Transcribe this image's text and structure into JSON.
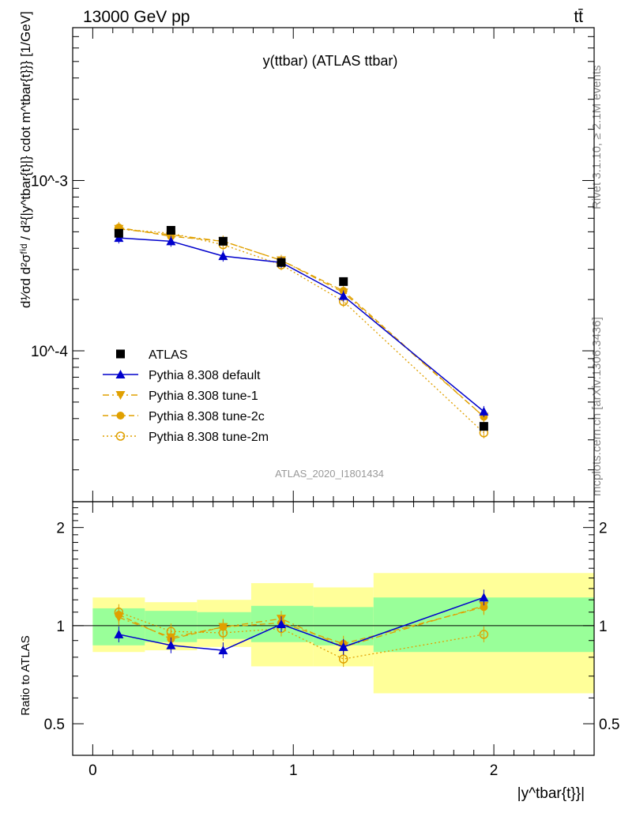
{
  "header": {
    "left": "13000 GeV pp",
    "right": "tt̄"
  },
  "side": {
    "rivet": "Rivet 3.1.10, ≥ 2.1M events",
    "mcplots": "mcplots.cern.ch [arXiv:1306.3436]"
  },
  "plot": {
    "title": "y(ttbar) (ATLAS ttbar)",
    "analysis": "ATLAS_2020_I1801434",
    "ylabel": "d¹⁄σd d²σᶠⁱᵈ / d²{|y^tbar{t}|} cdot m^tbar{t}}} [1/GeV]",
    "xlabel": "|y^tbar{t}}|",
    "ratio_ylabel": "Ratio to ATLAS"
  },
  "colors": {
    "atlas": "#000000",
    "default": "#0000cc",
    "tune": "#e0a000",
    "band_inner": "#99ff99",
    "band_outer": "#ffff99"
  },
  "chart_data": [
    {
      "type": "line",
      "title": "y(ttbar) (ATLAS ttbar)",
      "xlabel": "|y^tbar{t}}|",
      "ylabel": "d1/σ d²σfid / d²{|y^tbar{t}|} cdot m^tbar{t}}} [1/GeV]",
      "yscale": "log",
      "xlim": [
        -0.1,
        2.5
      ],
      "ylim": [
        1.3e-05,
        0.0079
      ],
      "y_tick_labels": [
        "10^-3",
        "10^-4"
      ],
      "x_edges": [
        0,
        0.26,
        0.52,
        0.79,
        1.1,
        1.4,
        2.5
      ],
      "x": [
        0.13,
        0.39,
        0.65,
        0.94,
        1.25,
        1.95
      ],
      "series": [
        {
          "name": "ATLAS",
          "values": [
            0.00049,
            0.00051,
            0.00044,
            0.00033,
            0.000255,
            3.6e-05
          ]
        },
        {
          "name": "Pythia 8.308 default",
          "values": [
            0.00046,
            0.00044,
            0.00036,
            0.00033,
            0.00021,
            4.4e-05
          ]
        },
        {
          "name": "Pythia 8.308 tune-1",
          "values": [
            0.00052,
            0.00048,
            0.00044,
            0.00034,
            0.00022,
            4.1e-05
          ]
        },
        {
          "name": "Pythia 8.308 tune-2c",
          "values": [
            0.00053,
            0.00047,
            0.00044,
            0.00034,
            0.000225,
            4.1e-05
          ]
        },
        {
          "name": "Pythia 8.308 tune-2m",
          "values": [
            0.00052,
            0.00049,
            0.00042,
            0.00032,
            0.000195,
            3.3e-05
          ]
        }
      ],
      "legend": "left-bottom",
      "annotation": "ATLAS_2020_I1801434"
    },
    {
      "type": "line",
      "ylabel": "Ratio to ATLAS",
      "xlabel": "|y^tbar{t}}|",
      "xlim": [
        -0.1,
        2.5
      ],
      "ylim": [
        0.4,
        2.4
      ],
      "x_ticks": [
        0,
        1,
        2
      ],
      "y_ticks": [
        0.5,
        1,
        2
      ],
      "x": [
        0.13,
        0.39,
        0.65,
        0.94,
        1.25,
        1.95
      ],
      "band_inner": [
        [
          0.87,
          1.13
        ],
        [
          0.89,
          1.11
        ],
        [
          0.91,
          1.1
        ],
        [
          0.89,
          1.15
        ],
        [
          0.87,
          1.14
        ],
        [
          0.83,
          1.22
        ]
      ],
      "band_outer": [
        [
          0.83,
          1.22
        ],
        [
          0.84,
          1.18
        ],
        [
          0.86,
          1.2
        ],
        [
          0.75,
          1.35
        ],
        [
          0.75,
          1.31
        ],
        [
          0.62,
          1.45
        ]
      ],
      "series": [
        {
          "name": "Pythia 8.308 default",
          "values": [
            0.94,
            0.87,
            0.84,
            1.01,
            0.86,
            1.22
          ]
        },
        {
          "name": "Pythia 8.308 tune-1",
          "values": [
            1.06,
            0.92,
            0.99,
            1.05,
            0.86,
            1.15
          ]
        },
        {
          "name": "Pythia 8.308 tune-2c",
          "values": [
            1.08,
            0.91,
            0.99,
            1.02,
            0.88,
            1.14
          ]
        },
        {
          "name": "Pythia 8.308 tune-2m",
          "values": [
            1.1,
            0.96,
            0.95,
            0.98,
            0.79,
            0.94
          ]
        }
      ]
    }
  ]
}
